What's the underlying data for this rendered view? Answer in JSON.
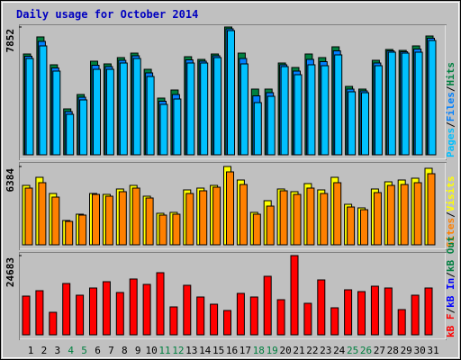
{
  "chart_data": [
    {
      "type": "bar",
      "title": "Daily usage for October 2014",
      "legend_separator": "/",
      "ylim": [
        0,
        7852
      ],
      "yticks": [
        7852
      ],
      "series": [
        {
          "name": "Hits",
          "color": "#008040",
          "values": [
            6193,
            7244,
            5530,
            2820,
            3705,
            5751,
            5585,
            5972,
            6248,
            5253,
            3484,
            3981,
            6027,
            5861,
            6193,
            7852,
            6248,
            4037,
            4037,
            5640,
            5364,
            6193,
            5972,
            6635,
            4202,
            4037,
            5806,
            6470,
            6414,
            6691,
            7299
          ]
        },
        {
          "name": "Files",
          "color": "#0080ff",
          "values": [
            6055,
            6968,
            5337,
            2654,
            3539,
            5502,
            5419,
            5806,
            6083,
            5032,
            3291,
            3705,
            5834,
            5751,
            6083,
            7742,
            5917,
            3622,
            3816,
            5530,
            5143,
            5862,
            5723,
            6387,
            4037,
            3926,
            5640,
            6387,
            6331,
            6498,
            7161
          ]
        },
        {
          "name": "Pages",
          "color": "#00c0ff",
          "values": [
            5917,
            6691,
            5143,
            2488,
            3373,
            5253,
            5253,
            5640,
            5917,
            4811,
            3097,
            3428,
            5640,
            5640,
            5972,
            7631,
            5585,
            3207,
            3594,
            5419,
            4921,
            5530,
            5474,
            6138,
            3871,
            3815,
            5474,
            6304,
            6248,
            6304,
            7023
          ]
        }
      ]
    },
    {
      "type": "bar",
      "legend_separator": "/",
      "ylim": [
        0,
        6384
      ],
      "yticks": [
        6384
      ],
      "series": [
        {
          "name": "Visits",
          "color": "#ffff00",
          "values": [
            4843,
            5503,
            4183,
            1981,
            2495,
            4183,
            4109,
            4550,
            4843,
            3962,
            2568,
            2642,
            4476,
            4623,
            4843,
            6384,
            5283,
            2642,
            3596,
            4550,
            4329,
            4990,
            4476,
            5503,
            3302,
            3009,
            4550,
            5136,
            5283,
            5430,
            6237
          ]
        },
        {
          "name": "Sites",
          "color": "#ff8000",
          "values": [
            4623,
            5063,
            3889,
            1908,
            2422,
            4109,
            3962,
            4329,
            4623,
            3816,
            2422,
            2495,
            4183,
            4403,
            4696,
            5944,
            4916,
            2495,
            3155,
            4403,
            4109,
            4623,
            4183,
            5063,
            3082,
            2862,
            4256,
            4843,
            4916,
            5063,
            5797
          ]
        }
      ]
    },
    {
      "type": "bar",
      "legend_separator": "/",
      "ylim": [
        0,
        24683
      ],
      "yticks": [
        24683
      ],
      "categories": [
        "1",
        "2",
        "3",
        "4",
        "5",
        "6",
        "7",
        "8",
        "9",
        "10",
        "11",
        "12",
        "13",
        "14",
        "15",
        "16",
        "17",
        "18",
        "19",
        "20",
        "21",
        "22",
        "23",
        "24",
        "25",
        "26",
        "27",
        "28",
        "29",
        "30",
        "31"
      ],
      "category_colors": [
        "#000000",
        "#000000",
        "#000000",
        "#008040",
        "#008040",
        "#000000",
        "#000000",
        "#000000",
        "#000000",
        "#000000",
        "#008040",
        "#008040",
        "#000000",
        "#000000",
        "#000000",
        "#000000",
        "#000000",
        "#008040",
        "#008040",
        "#000000",
        "#000000",
        "#000000",
        "#000000",
        "#000000",
        "#008040",
        "#008040",
        "#000000",
        "#000000",
        "#000000",
        "#000000",
        "#000000"
      ],
      "series": [
        {
          "name": "kB F",
          "color": "#ff0000",
          "values": [
            12061,
            13744,
            7012,
            15988,
            12341,
            14585,
            16549,
            13183,
            17390,
            15707,
            19354,
            8695,
            15427,
            11780,
            9537,
            7573,
            12903,
            11780,
            18232,
            10939,
            24683,
            9817,
            17110,
            8415,
            14024,
            13463,
            15146,
            14585,
            7854,
            12341,
            14585
          ]
        }
      ],
      "other_legend": [
        {
          "name": "kB In",
          "color": "#0000ff"
        },
        {
          "name": "kB Out",
          "color": "#008040"
        }
      ]
    }
  ]
}
